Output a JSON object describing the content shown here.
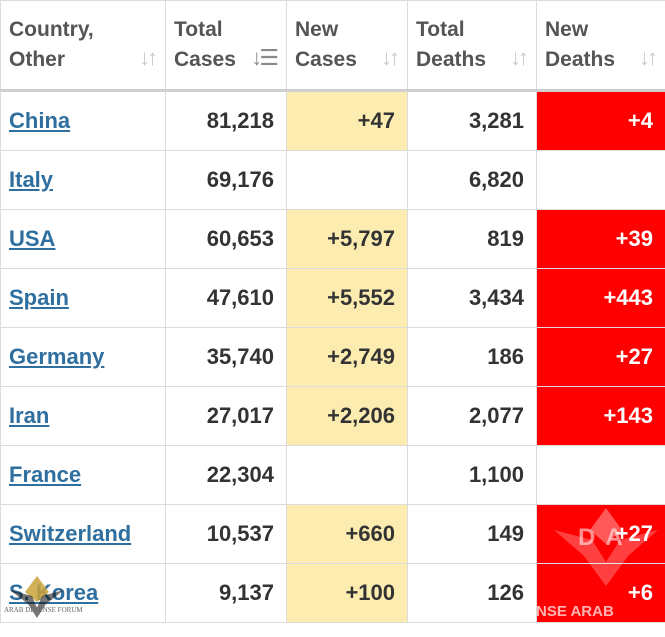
{
  "columns": [
    {
      "label": "Country,\nOther",
      "sort_icon": "sort-icon",
      "active": false
    },
    {
      "label": "Total\nCases",
      "sort_icon": "sort-desc-icon",
      "active": true
    },
    {
      "label": "New\nCases",
      "sort_icon": "sort-icon",
      "active": false
    },
    {
      "label": "Total\nDeaths",
      "sort_icon": "sort-icon",
      "active": false
    },
    {
      "label": "New\nDeaths",
      "sort_icon": "sort-icon",
      "active": false
    }
  ],
  "rows": [
    {
      "country": "China",
      "total_cases": "81,218",
      "new_cases": "+47",
      "total_deaths": "3,281",
      "new_deaths": "+4"
    },
    {
      "country": "Italy",
      "total_cases": "69,176",
      "new_cases": "",
      "total_deaths": "6,820",
      "new_deaths": ""
    },
    {
      "country": "USA",
      "total_cases": "60,653",
      "new_cases": "+5,797",
      "total_deaths": "819",
      "new_deaths": "+39"
    },
    {
      "country": "Spain",
      "total_cases": "47,610",
      "new_cases": "+5,552",
      "total_deaths": "3,434",
      "new_deaths": "+443"
    },
    {
      "country": "Germany",
      "total_cases": "35,740",
      "new_cases": "+2,749",
      "total_deaths": "186",
      "new_deaths": "+27"
    },
    {
      "country": "Iran",
      "total_cases": "27,017",
      "new_cases": "+2,206",
      "total_deaths": "2,077",
      "new_deaths": "+143"
    },
    {
      "country": "France",
      "total_cases": "22,304",
      "new_cases": "",
      "total_deaths": "1,100",
      "new_deaths": ""
    },
    {
      "country": "Switzerland",
      "total_cases": "10,537",
      "new_cases": "+660",
      "total_deaths": "149",
      "new_deaths": "+27"
    },
    {
      "country": "S. Korea",
      "total_cases": "9,137",
      "new_cases": "+100",
      "total_deaths": "126",
      "new_deaths": "+6"
    }
  ],
  "colors": {
    "new_cases_bg": "#fdecb0",
    "new_deaths_bg": "#ff0000",
    "link": "#2f6f9f"
  },
  "watermark": {
    "text_left": "ARAB DEFENSE FORUM",
    "text_right": "NSE ARAB FORUM",
    "logo_text": "DA"
  }
}
